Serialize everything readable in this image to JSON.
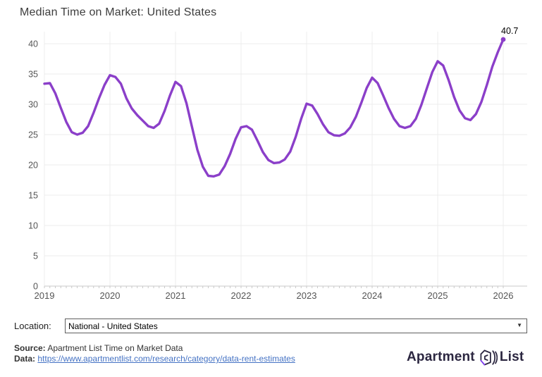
{
  "title": "Median Time on Market: United States",
  "controls": {
    "location_label": "Location:",
    "location_value": "National - United States",
    "caret": "▼"
  },
  "footer": {
    "source_label": "Source:",
    "source_text": " Apartment List Time on Market Data",
    "data_label": "Data:",
    "data_link_text": "https://www.apartmentlist.com/research/category/data-rent-estimates",
    "data_link_href": "https://www.apartmentlist.com/research/category/data-rent-estimates",
    "logo_text_left": "Apartment",
    "logo_text_right": "List"
  },
  "colors": {
    "line": "#8B3FC9",
    "grid": "#ececec",
    "axis_line": "#c9c9c9",
    "axis_text": "#555555",
    "end_label_text": "#000000",
    "link": "#4472c4",
    "logo_dark": "#2b2640",
    "logo_accent": "#7c3aed"
  },
  "chart_data": {
    "type": "line",
    "title": "Median Time on Market: United States",
    "ylabel": "",
    "xlabel": "",
    "ylim": [
      0,
      42
    ],
    "grid": true,
    "legend": "none",
    "y_ticks": [
      0,
      5,
      10,
      15,
      20,
      25,
      30,
      35,
      40
    ],
    "x_tick_labels": [
      "2019",
      "2020",
      "2021",
      "2022",
      "2023",
      "2024",
      "2025",
      "2026"
    ],
    "end_label": "40.7",
    "months": [
      "2019-01",
      "2019-02",
      "2019-03",
      "2019-04",
      "2019-05",
      "2019-06",
      "2019-07",
      "2019-08",
      "2019-09",
      "2019-10",
      "2019-11",
      "2019-12",
      "2020-01",
      "2020-02",
      "2020-03",
      "2020-04",
      "2020-05",
      "2020-06",
      "2020-07",
      "2020-08",
      "2020-09",
      "2020-10",
      "2020-11",
      "2020-12",
      "2021-01",
      "2021-02",
      "2021-03",
      "2021-04",
      "2021-05",
      "2021-06",
      "2021-07",
      "2021-08",
      "2021-09",
      "2021-10",
      "2021-11",
      "2021-12",
      "2022-01",
      "2022-02",
      "2022-03",
      "2022-04",
      "2022-05",
      "2022-06",
      "2022-07",
      "2022-08",
      "2022-09",
      "2022-10",
      "2022-11",
      "2022-12",
      "2023-01",
      "2023-02",
      "2023-03",
      "2023-04",
      "2023-05",
      "2023-06",
      "2023-07",
      "2023-08",
      "2023-09",
      "2023-10",
      "2023-11",
      "2023-12",
      "2024-01",
      "2024-02",
      "2024-03",
      "2024-04",
      "2024-05",
      "2024-06",
      "2024-07",
      "2024-08",
      "2024-09",
      "2024-10",
      "2024-11",
      "2024-12",
      "2025-01",
      "2025-02",
      "2025-03",
      "2025-04",
      "2025-05",
      "2025-06",
      "2025-07",
      "2025-08",
      "2025-09",
      "2025-10",
      "2025-11",
      "2025-12",
      "2026-01"
    ],
    "values": [
      33.4,
      33.5,
      31.8,
      29.4,
      27.1,
      25.4,
      25.0,
      25.3,
      26.4,
      28.6,
      31.0,
      33.2,
      34.8,
      34.5,
      33.4,
      31.0,
      29.3,
      28.2,
      27.3,
      26.4,
      26.1,
      26.8,
      28.9,
      31.5,
      33.7,
      33.0,
      30.2,
      26.3,
      22.5,
      19.7,
      18.2,
      18.1,
      18.4,
      19.8,
      21.8,
      24.3,
      26.2,
      26.4,
      25.8,
      24.0,
      22.1,
      20.8,
      20.3,
      20.4,
      20.9,
      22.2,
      24.6,
      27.6,
      30.1,
      29.8,
      28.4,
      26.7,
      25.4,
      24.9,
      24.8,
      25.2,
      26.2,
      27.9,
      30.2,
      32.7,
      34.4,
      33.5,
      31.5,
      29.4,
      27.6,
      26.4,
      26.1,
      26.4,
      27.6,
      29.9,
      32.6,
      35.3,
      37.1,
      36.4,
      34.0,
      31.2,
      29.0,
      27.7,
      27.4,
      28.4,
      30.4,
      33.2,
      36.2,
      38.6,
      40.7
    ]
  }
}
